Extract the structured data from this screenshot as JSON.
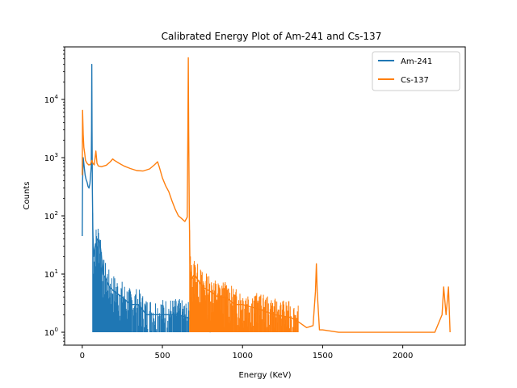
{
  "chart_data": {
    "type": "line",
    "title": "Calibrated Energy Plot of Am-241 and Cs-137",
    "xlabel": "Energy (KeV)",
    "ylabel": "Counts",
    "xlim": [
      -110,
      2390
    ],
    "ylim": [
      0.6,
      80000
    ],
    "yscale": "log",
    "grid": false,
    "legend_position": "top-right",
    "x_ticks": [
      0,
      500,
      1000,
      1500,
      2000
    ],
    "y_ticks": [
      {
        "value": 1,
        "label": "10",
        "exp": "0"
      },
      {
        "value": 10,
        "label": "10",
        "exp": "1"
      },
      {
        "value": 100,
        "label": "10",
        "exp": "2"
      },
      {
        "value": 1000,
        "label": "10",
        "exp": "3"
      },
      {
        "value": 10000,
        "label": "10",
        "exp": "4"
      }
    ],
    "series": [
      {
        "name": "Am-241",
        "color": "#1f77b4",
        "points": [
          [
            0,
            45
          ],
          [
            2,
            400
          ],
          [
            6,
            1000
          ],
          [
            12,
            700
          ],
          [
            18,
            500
          ],
          [
            24,
            420
          ],
          [
            30,
            380
          ],
          [
            36,
            320
          ],
          [
            42,
            300
          ],
          [
            48,
            360
          ],
          [
            52,
            500
          ],
          [
            56,
            700
          ],
          [
            58,
            3000
          ],
          [
            59.5,
            40000
          ],
          [
            61,
            3000
          ],
          [
            63,
            300
          ],
          [
            66,
            60
          ],
          [
            70,
            20
          ],
          [
            80,
            30
          ],
          [
            95,
            40
          ],
          [
            110,
            35
          ],
          [
            120,
            20
          ],
          [
            130,
            10
          ],
          [
            150,
            8
          ],
          [
            170,
            6
          ],
          [
            200,
            5
          ],
          [
            250,
            4
          ],
          [
            300,
            3
          ],
          [
            350,
            3
          ],
          [
            400,
            2
          ],
          [
            450,
            2
          ],
          [
            500,
            2
          ],
          [
            550,
            2
          ],
          [
            600,
            2
          ],
          [
            650,
            1.8
          ],
          [
            700,
            1.6
          ],
          [
            750,
            1.4
          ],
          [
            800,
            1
          ]
        ],
        "noise_range": [
          65,
          800
        ],
        "noise_bins": 240,
        "noise_seed": 7
      },
      {
        "name": "Cs-137",
        "color": "#ff7f0e",
        "points": [
          [
            0,
            500
          ],
          [
            2,
            6500
          ],
          [
            6,
            2500
          ],
          [
            10,
            1500
          ],
          [
            15,
            1200
          ],
          [
            20,
            900
          ],
          [
            30,
            800
          ],
          [
            40,
            750
          ],
          [
            50,
            760
          ],
          [
            60,
            900
          ],
          [
            66,
            800
          ],
          [
            75,
            750
          ],
          [
            85,
            1300
          ],
          [
            92,
            800
          ],
          [
            100,
            720
          ],
          [
            120,
            700
          ],
          [
            150,
            740
          ],
          [
            175,
            850
          ],
          [
            190,
            950
          ],
          [
            200,
            900
          ],
          [
            230,
            800
          ],
          [
            260,
            720
          ],
          [
            300,
            650
          ],
          [
            340,
            600
          ],
          [
            380,
            590
          ],
          [
            420,
            640
          ],
          [
            450,
            750
          ],
          [
            470,
            850
          ],
          [
            480,
            700
          ],
          [
            500,
            450
          ],
          [
            520,
            330
          ],
          [
            540,
            260
          ],
          [
            560,
            180
          ],
          [
            580,
            130
          ],
          [
            600,
            100
          ],
          [
            620,
            90
          ],
          [
            640,
            80
          ],
          [
            655,
            95
          ],
          [
            659,
            3000
          ],
          [
            661.7,
            52000
          ],
          [
            664,
            3000
          ],
          [
            668,
            100
          ],
          [
            672,
            15
          ],
          [
            680,
            8
          ],
          [
            700,
            10
          ],
          [
            720,
            8
          ],
          [
            750,
            6
          ],
          [
            800,
            5
          ],
          [
            850,
            4
          ],
          [
            900,
            4
          ],
          [
            950,
            3
          ],
          [
            1000,
            3
          ],
          [
            1100,
            2.5
          ],
          [
            1200,
            2
          ],
          [
            1300,
            1.8
          ],
          [
            1350,
            1.5
          ],
          [
            1400,
            1.2
          ],
          [
            1440,
            1.3
          ],
          [
            1455,
            5
          ],
          [
            1460.8,
            15
          ],
          [
            1466,
            5
          ],
          [
            1480,
            1.1
          ],
          [
            1500,
            1.1
          ],
          [
            1600,
            1
          ],
          [
            1700,
            1
          ],
          [
            1800,
            1
          ],
          [
            1900,
            1
          ],
          [
            2000,
            1
          ],
          [
            2100,
            1
          ],
          [
            2200,
            1
          ],
          [
            2245,
            2
          ],
          [
            2255,
            6
          ],
          [
            2270,
            2
          ],
          [
            2285,
            6
          ],
          [
            2295,
            1
          ]
        ],
        "noise_range": [
          670,
          1350
        ],
        "noise_bins": 260,
        "noise_seed": 13
      }
    ]
  }
}
